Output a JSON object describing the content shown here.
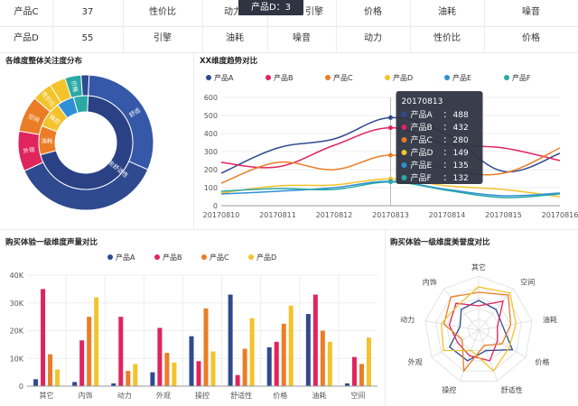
{
  "table": {
    "rows": [
      [
        "产品C",
        "37",
        "性价比",
        "动力",
        "",
        "引擎",
        "价格",
        "油耗",
        "噪音"
      ],
      [
        "产品D",
        "55",
        "引擎",
        "油耗",
        "噪音",
        "动力",
        "性价比",
        "价格"
      ]
    ],
    "tooltip": "产品D：3"
  },
  "colors": {
    "navy": "#2f4a8e",
    "crimson": "#e0245e",
    "orange": "#ea7d26",
    "yellow": "#f3c32c",
    "blue": "#2f8fd6",
    "teal": "#2aa9a6",
    "tooltip_bg": "#2e3442"
  },
  "chart_data": [
    {
      "type": "pie",
      "title": "各维度整体关注度分布",
      "inner_ring": [
        {
          "label": "乘坐舒适性",
          "value": 70,
          "color": "#2a4285"
        },
        {
          "label": "油耗",
          "value": 10,
          "color": "#ea7d26"
        },
        {
          "label": "操控",
          "value": 9,
          "color": "#f3c32c"
        },
        {
          "label": "",
          "value": 6,
          "color": "#2f8fd6"
        },
        {
          "label": "",
          "value": 5,
          "color": "#2aa9a6"
        }
      ],
      "outer_ring": [
        {
          "label": "舒适",
          "value": 32,
          "color": "#3658a8"
        },
        {
          "label": "",
          "value": 38,
          "color": "#2f4a8e"
        },
        {
          "label": "外观",
          "value": 10,
          "color": "#e0245e"
        },
        {
          "label": "空间",
          "value": 9,
          "color": "#ea7d26"
        },
        {
          "label": "性价比",
          "value": 5,
          "color": "#f3c32c"
        },
        {
          "label": "",
          "value": 4,
          "color": "#f3c32c"
        },
        {
          "label": "价格",
          "value": 4,
          "color": "#2aa9a6"
        },
        {
          "label": "",
          "value": 2,
          "color": "#2f4a8e"
        }
      ]
    },
    {
      "type": "line",
      "title": "XX维度趋势对比",
      "x": [
        "20170810",
        "20170811",
        "20170812",
        "20170813",
        "20170814",
        "20170815",
        "20170816"
      ],
      "ylim": [
        0,
        600
      ],
      "yticks": [
        0,
        100,
        200,
        300,
        400,
        500,
        600
      ],
      "series": [
        {
          "name": "产品A",
          "color": "#2f4a8e",
          "values": [
            180,
            320,
            370,
            488,
            395,
            190,
            290
          ]
        },
        {
          "name": "产品B",
          "color": "#e0245e",
          "values": [
            240,
            215,
            335,
            432,
            340,
            320,
            250
          ]
        },
        {
          "name": "产品C",
          "color": "#ea7d26",
          "values": [
            125,
            240,
            200,
            280,
            200,
            180,
            320
          ]
        },
        {
          "name": "产品D",
          "color": "#f3c32c",
          "values": [
            70,
            110,
            115,
            149,
            110,
            90,
            50
          ]
        },
        {
          "name": "产品E",
          "color": "#2f8fd6",
          "values": [
            65,
            80,
            100,
            135,
            90,
            55,
            70
          ]
        },
        {
          "name": "产品F",
          "color": "#2aa9a6",
          "values": [
            80,
            95,
            90,
            132,
            85,
            45,
            65
          ]
        }
      ],
      "tooltip": {
        "date": "20170813",
        "items": [
          {
            "name": "产品A",
            "value": "488",
            "color": "#2f4a8e"
          },
          {
            "name": "产品B",
            "value": "432",
            "color": "#e0245e"
          },
          {
            "name": "产品C",
            "value": "280",
            "color": "#ea7d26"
          },
          {
            "name": "产品D",
            "value": "149",
            "color": "#f3c32c"
          },
          {
            "name": "产品E",
            "value": "135",
            "color": "#2f8fd6"
          },
          {
            "name": "产品F",
            "value": "132",
            "color": "#2aa9a6"
          }
        ]
      }
    },
    {
      "type": "bar",
      "title": "购买体验一级维度声量对比",
      "categories": [
        "其它",
        "内饰",
        "动力",
        "外观",
        "操控",
        "舒适性",
        "价格",
        "油耗",
        "空间"
      ],
      "ylim": [
        0,
        40000
      ],
      "yticks": [
        "0",
        "10K",
        "20K",
        "30K",
        "40K"
      ],
      "series": [
        {
          "name": "产品A",
          "color": "#2f4a8e",
          "values": [
            2500,
            1500,
            1000,
            5000,
            18000,
            33000,
            14000,
            26000,
            1000
          ]
        },
        {
          "name": "产品B",
          "color": "#e0245e",
          "values": [
            35000,
            16500,
            25000,
            21000,
            9000,
            4000,
            16000,
            33000,
            10500
          ]
        },
        {
          "name": "产品C",
          "color": "#ea7d26",
          "values": [
            11500,
            25000,
            5500,
            12000,
            28000,
            13500,
            22500,
            20000,
            8000
          ]
        },
        {
          "name": "产品D",
          "color": "#f3c32c",
          "values": [
            6000,
            32000,
            8000,
            8500,
            12500,
            24500,
            29000,
            16000,
            17500
          ]
        }
      ]
    },
    {
      "type": "radar",
      "title": "购买体验一级维度美誉度对比",
      "axes": [
        "其它",
        "空间",
        "油耗",
        "价格",
        "舒适性",
        "操控",
        "外观",
        "动力",
        "内饰"
      ],
      "max": 1,
      "series": [
        {
          "name": "产品A",
          "color": "#2f4a8e",
          "values": [
            0.55,
            0.5,
            0.45,
            0.72,
            0.4,
            0.6,
            0.62,
            0.35,
            0.5
          ]
        },
        {
          "name": "产品B",
          "color": "#e0245e",
          "values": [
            0.45,
            0.7,
            0.35,
            0.4,
            0.6,
            0.5,
            0.45,
            0.55,
            0.65
          ]
        },
        {
          "name": "产品C",
          "color": "#ea7d26",
          "values": [
            0.7,
            0.85,
            0.6,
            0.5,
            0.3,
            0.8,
            0.35,
            0.65,
            0.8
          ]
        },
        {
          "name": "产品D",
          "color": "#f3c32c",
          "values": [
            0.8,
            0.9,
            0.7,
            0.65,
            0.8,
            0.4,
            0.75,
            0.7,
            0.6
          ]
        }
      ]
    }
  ]
}
